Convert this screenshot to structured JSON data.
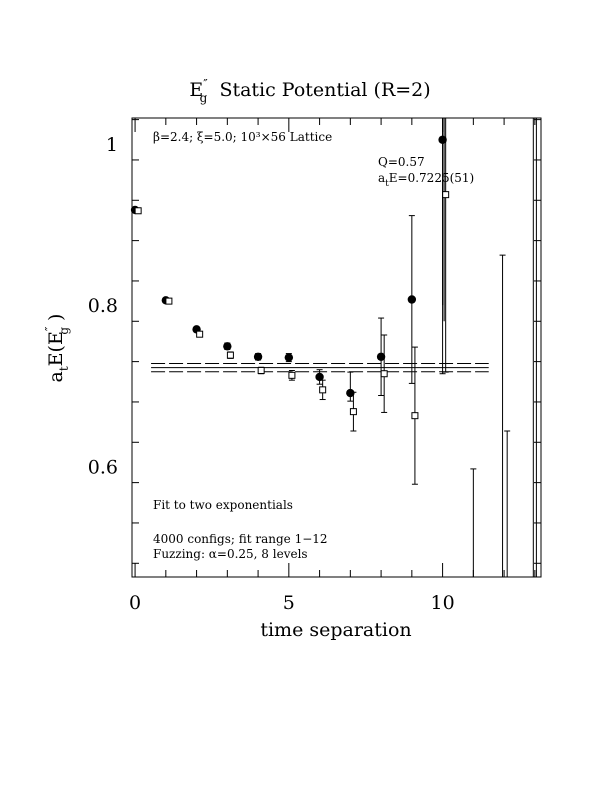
{
  "chart_data": {
    "type": "scatter",
    "title": {
      "main": "E",
      "sup": "″",
      "sub": "g",
      "rest": "  Static Potential (R=2)"
    },
    "xlabel": "time separation",
    "ylabel": {
      "a": "a",
      "a_sub": "t",
      "main": "E(E",
      "sup": "″",
      "sub": "g",
      "close": " )"
    },
    "xlim": [
      -0.1,
      13.2
    ],
    "ylim": [
      0.463,
      1.032
    ],
    "x_ticks": [
      0,
      5,
      10
    ],
    "x_tick_labels": [
      "0",
      "5",
      "10"
    ],
    "y_ticks": [
      0.6,
      0.8,
      1.0
    ],
    "y_tick_labels": [
      "0.6",
      "0.8",
      "1"
    ],
    "annotations": {
      "lattice": "β=2.4; ξ=5.0; 10³×56 Lattice",
      "q": "Q=0.57",
      "fit_value_prefix": "a",
      "fit_value_sub": "t",
      "fit_value_rest": "E=0.7225(51)",
      "method": "Fit to two exponentials",
      "configs": "4000 configs; fit range 1−12",
      "fuzzing": "Fuzzing: α=0.25, 8 levels"
    },
    "fit": {
      "value": 0.7225,
      "error": 0.0051,
      "x_range": [
        0,
        11.5
      ]
    },
    "series": [
      {
        "marker": "filled-circle",
        "x": [
          0,
          1,
          2,
          3,
          4,
          5,
          6,
          7,
          8,
          9,
          10,
          11,
          12,
          13
        ],
        "y": [
          0.918,
          0.806,
          0.77,
          0.749,
          0.736,
          0.735,
          0.711,
          0.691,
          0.736,
          0.807,
          1.005,
          null,
          null,
          null
        ],
        "err_lo": [
          0.002,
          0.002,
          0.003,
          0.004,
          0.004,
          0.005,
          0.009,
          0.01,
          0.048,
          0.104,
          0.29,
          0,
          0,
          0
        ],
        "err_hi": [
          0.002,
          0.002,
          0.003,
          0.004,
          0.004,
          0.005,
          0.009,
          0.026,
          0.048,
          0.104,
          0.29,
          0,
          0,
          0
        ]
      },
      {
        "marker": "open-square",
        "x": [
          0.1,
          1.1,
          2.1,
          3.1,
          4.1,
          5.1,
          6.1,
          7.1,
          8.1,
          9.1,
          10.1,
          11.1,
          12.1,
          13.1
        ],
        "y": [
          0.917,
          0.805,
          0.764,
          0.738,
          0.719,
          0.713,
          0.695,
          0.668,
          0.715,
          0.663,
          0.937,
          null,
          null,
          null
        ],
        "err_lo": [
          0.002,
          0.002,
          0.003,
          0.004,
          0.004,
          0.006,
          0.012,
          0.024,
          0.048,
          0.085,
          0.22,
          0,
          0,
          0
        ],
        "err_hi": [
          0.002,
          0.002,
          0.003,
          0.004,
          0.004,
          0.006,
          0.012,
          0.024,
          0.048,
          0.085,
          0.22,
          0,
          0,
          0
        ]
      }
    ],
    "extra_error_bars": [
      {
        "x": 11,
        "lo": 0.463,
        "hi": 0.597
      },
      {
        "x": 11.95,
        "lo": 0.463,
        "hi": 0.862
      },
      {
        "x": 12.1,
        "lo": 0.463,
        "hi": 0.644
      },
      {
        "x": 12.95,
        "lo": 0.463,
        "hi": 1.032
      },
      {
        "x": 13.05,
        "lo": 0.463,
        "hi": 1.032
      },
      {
        "x": 10.0,
        "lo": 0.8,
        "hi": 1.032
      },
      {
        "x": 10.05,
        "lo": 0.78,
        "hi": 1.032
      }
    ]
  }
}
